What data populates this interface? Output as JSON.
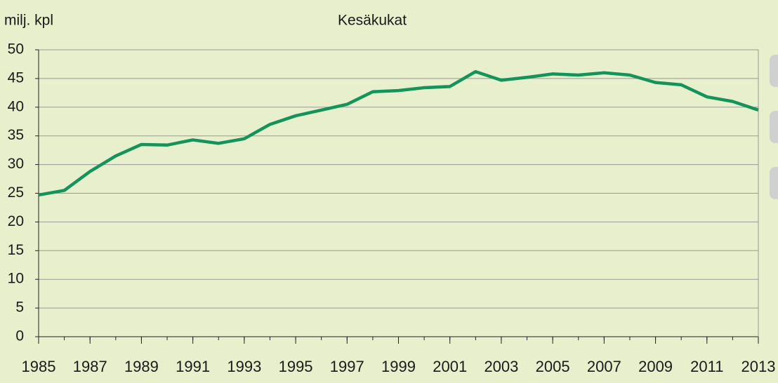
{
  "chart_data": {
    "type": "line",
    "title": "Kesäkukat",
    "y_label": "milj. kpl",
    "x": [
      1985,
      1986,
      1987,
      1988,
      1989,
      1990,
      1991,
      1992,
      1993,
      1994,
      1995,
      1996,
      1997,
      1998,
      1999,
      2000,
      2001,
      2002,
      2003,
      2004,
      2005,
      2006,
      2007,
      2008,
      2009,
      2010,
      2011,
      2012,
      2013
    ],
    "series": [
      {
        "name": "Kesäkukat",
        "color": "#14935a",
        "values": [
          24.7,
          25.5,
          28.8,
          31.5,
          33.5,
          33.4,
          34.3,
          33.7,
          34.5,
          37.0,
          38.5,
          39.5,
          40.5,
          42.7,
          42.9,
          43.4,
          43.6,
          46.2,
          44.7,
          45.2,
          45.8,
          45.6,
          46.0,
          45.6,
          44.3,
          43.9,
          41.8,
          41.0,
          39.5
        ]
      }
    ],
    "xlim": [
      1985,
      2013
    ],
    "xticks": [
      1985,
      1987,
      1989,
      1991,
      1993,
      1995,
      1997,
      1999,
      2001,
      2003,
      2005,
      2007,
      2009,
      2011,
      2013
    ],
    "ylim": [
      0,
      50
    ],
    "yticks": [
      0,
      5,
      10,
      15,
      20,
      25,
      30,
      35,
      40,
      45,
      50
    ],
    "grid": true
  }
}
